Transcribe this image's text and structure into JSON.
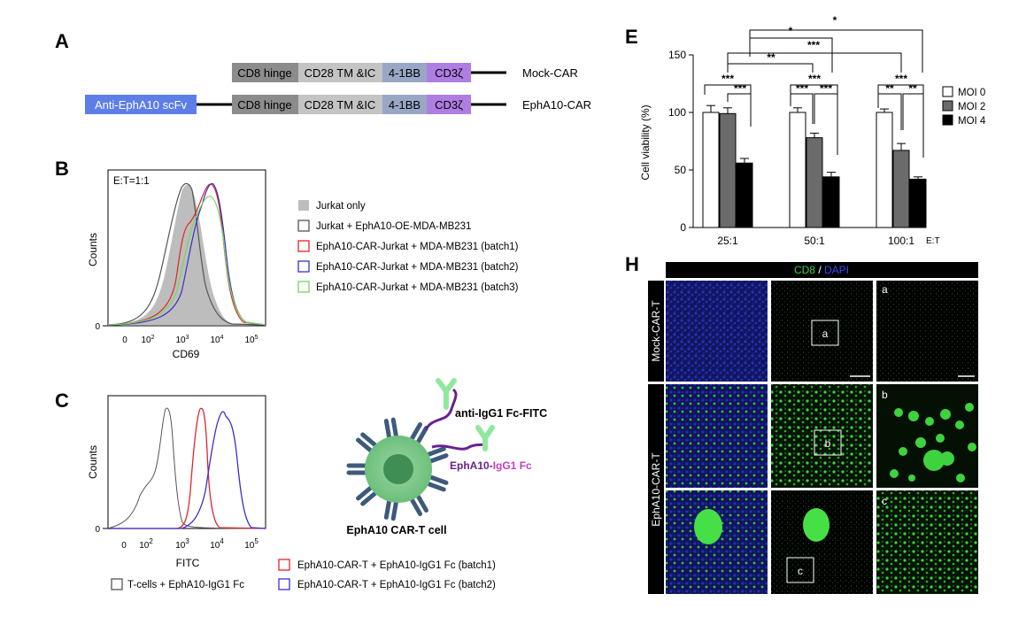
{
  "colors": {
    "scfv": "#5d7ee6",
    "hinge": "#8c8c8c",
    "tm": "#c4c4c4",
    "bb": "#9aa7c4",
    "cd3z": "#b07de3",
    "red": "#e0242a",
    "blue": "#3a2fcc",
    "green": "#72d95a",
    "grey_fill": "#bdbdbd",
    "dark_line": "#555555",
    "moi0": "#ffffff",
    "moi2": "#6b6b6b",
    "moi4": "#000000",
    "cell_outer": "#7dc689",
    "cell_inner": "#3f8e53",
    "receptor": "#3d5a7d",
    "linker": "#6a2090",
    "fitc_icon": "#8fe89d",
    "micro_blue": "#1a1f8c",
    "micro_green": "#3fd23f"
  },
  "panelA": {
    "label": "A",
    "mock": {
      "segments": [
        "CD8 hinge",
        "CD28 TM &IC",
        "4-1BB",
        "CD3ζ"
      ],
      "name": "Mock-CAR"
    },
    "epha": {
      "scfv": "Anti-EphA10 scFv",
      "segments": [
        "CD8 hinge",
        "CD28 TM &IC",
        "4-1BB",
        "CD3ζ"
      ],
      "name": "EphA10-CAR"
    }
  },
  "panelB": {
    "label": "B",
    "ratio": "E:T=1:1",
    "ylabel": "Counts",
    "xlabel": "CD69",
    "xticks": [
      "0",
      "10",
      "10",
      "10",
      "10"
    ],
    "xtick_exps": [
      "",
      "2",
      "3",
      "4",
      "5"
    ],
    "legend": [
      "Jurkat only",
      "Jurkat + EphA10-OE-MDA-MB231",
      "EphA10-CAR-Jurkat + MDA-MB231 (batch1)",
      "EphA10-CAR-Jurkat + MDA-MB231 (batch2)",
      "EphA10-CAR-Jurkat + MDA-MB231 (batch3)"
    ]
  },
  "panelC": {
    "label": "C",
    "ylabel": "Counts",
    "xlabel": "FITC",
    "xticks": [
      "0",
      "10",
      "10",
      "10",
      "10"
    ],
    "xtick_exps": [
      "",
      "2",
      "3",
      "4",
      "5"
    ],
    "legend": [
      "T-cells + EphA10-IgG1 Fc",
      "EphA10-CAR-T + EphA10-IgG1 Fc (batch1)",
      "EphA10-CAR-T + EphA10-IgG1 Fc (batch2)"
    ],
    "schematic": {
      "antibody": "anti-IgG1 Fc-FITC",
      "fusion_a": "EphA10-",
      "fusion_b": "IgG1 Fc",
      "cell": "EphA10 CAR-T cell"
    }
  },
  "panelE": {
    "label": "E",
    "x_unit": "E:T",
    "significance": [
      "*",
      "*",
      "***",
      "**",
      "***",
      "***",
      "***",
      "***",
      "***",
      "***",
      "**",
      "**"
    ]
  },
  "panelH": {
    "label": "H",
    "header_a": "CD8",
    "header_sep": " / ",
    "header_b": "DAPI",
    "rows": [
      "Mock-CAR-T",
      "EphA10-CAR-T"
    ],
    "insets": [
      "a",
      "b",
      "c"
    ]
  },
  "chart_data": {
    "type": "bar",
    "categories": [
      "25:1",
      "50:1",
      "100:1"
    ],
    "series": [
      {
        "name": "MOI 0",
        "values": [
          100,
          100,
          100
        ],
        "errors": [
          6,
          4,
          3
        ]
      },
      {
        "name": "MOI 2",
        "values": [
          99,
          78,
          67
        ],
        "errors": [
          5,
          4,
          6
        ]
      },
      {
        "name": "MOI 4",
        "values": [
          56,
          44,
          42
        ],
        "errors": [
          4,
          4,
          2
        ]
      }
    ],
    "ylabel": "Cell viability (%)",
    "xlabel": "E:T",
    "ylim": [
      0,
      150
    ],
    "yticks": [
      0,
      50,
      100,
      150
    ],
    "legend_position": "right",
    "grid": false
  }
}
